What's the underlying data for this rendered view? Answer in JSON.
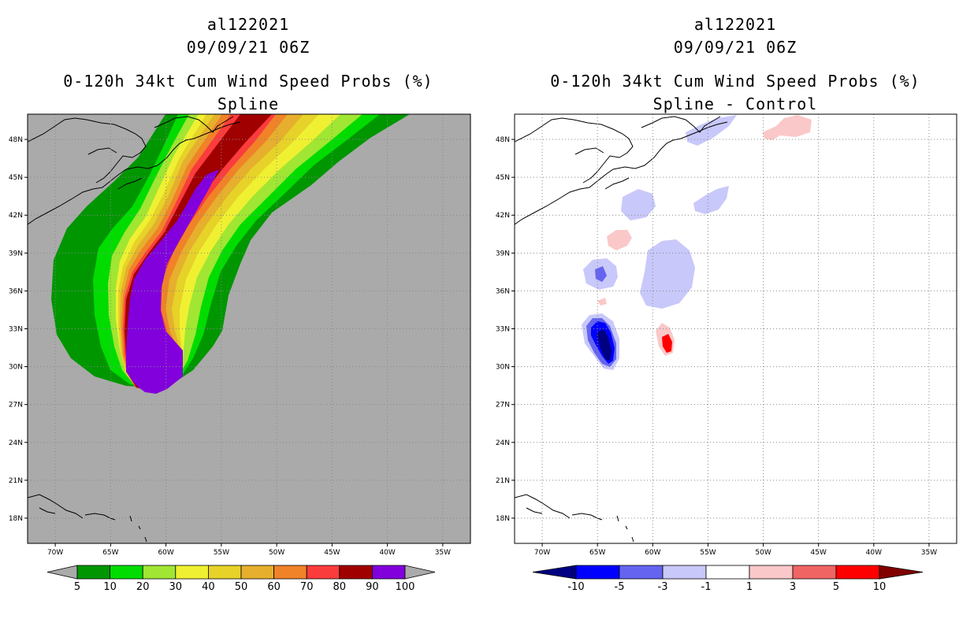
{
  "colors": {
    "land_left": "#aaaaaa",
    "ocean_right": "#ffffff",
    "grid": "#888888",
    "coast": "#000000"
  },
  "chart_data": [
    {
      "type": "heatmap",
      "panel": "left",
      "storm_id": "al122021",
      "datetime": "09/09/21 06Z",
      "title": "0-120h 34kt Cum Wind Speed Probs (%)",
      "subtitle": "Spline",
      "x_ticks": [
        "70W",
        "65W",
        "60W",
        "55W",
        "50W",
        "45W",
        "40W",
        "35W"
      ],
      "y_ticks": [
        "48N",
        "45N",
        "42N",
        "39N",
        "36N",
        "33N",
        "30N",
        "27N",
        "24N",
        "21N",
        "18N"
      ],
      "lon_range": [
        -72.5,
        -32.5
      ],
      "lat_range": [
        16,
        50
      ],
      "colorbar": {
        "labels": [
          "5",
          "10",
          "20",
          "30",
          "40",
          "50",
          "60",
          "70",
          "80",
          "90",
          "100"
        ],
        "colors": [
          "#aaaaaa",
          "#009600",
          "#00dc00",
          "#a0e632",
          "#f0f032",
          "#e6d228",
          "#e6af2d",
          "#f08228",
          "#fa3c3c",
          "#a00000",
          "#8200dc",
          "#aaaaaa"
        ]
      },
      "contours": [
        {
          "level": 5,
          "color": "#009600"
        },
        {
          "level": 10,
          "color": "#00dc00"
        },
        {
          "level": 20,
          "color": "#a0e632"
        },
        {
          "level": 30,
          "color": "#f0f032"
        },
        {
          "level": 40,
          "color": "#e6d228"
        },
        {
          "level": 50,
          "color": "#e6af2d"
        },
        {
          "level": 60,
          "color": "#f08228"
        },
        {
          "level": 70,
          "color": "#fa3c3c"
        },
        {
          "level": 80,
          "color": "#a00000"
        },
        {
          "level": 90,
          "color": "#8200dc"
        }
      ]
    },
    {
      "type": "heatmap",
      "panel": "right",
      "storm_id": "al122021",
      "datetime": "09/09/21 06Z",
      "title": "0-120h 34kt Cum Wind Speed Probs (%)",
      "subtitle": "Spline - Control",
      "x_ticks": [
        "70W",
        "65W",
        "60W",
        "55W",
        "50W",
        "45W",
        "40W",
        "35W"
      ],
      "y_ticks": [
        "48N",
        "45N",
        "42N",
        "39N",
        "36N",
        "33N",
        "30N",
        "27N",
        "24N",
        "21N",
        "18N"
      ],
      "lon_range": [
        -72.5,
        -32.5
      ],
      "lat_range": [
        16,
        50
      ],
      "colorbar": {
        "labels": [
          "-10",
          "-5",
          "-3",
          "-1",
          "1",
          "3",
          "5",
          "10"
        ],
        "colors": [
          "#000082",
          "#0000ff",
          "#6464f0",
          "#c8c8fa",
          "#ffffff",
          "#fac8c8",
          "#f06464",
          "#ff0000",
          "#820000"
        ]
      },
      "anomalies": [
        {
          "name": "blob-south-negative-a",
          "level": -1,
          "color": "#c8c8fa"
        },
        {
          "name": "blob-south-negative-b",
          "level": -3,
          "color": "#6464f0"
        },
        {
          "name": "blob-south-negative-c",
          "level": -5,
          "color": "#0000ff"
        },
        {
          "name": "blob-south-negative-d",
          "level": -10,
          "color": "#000082"
        },
        {
          "name": "blob-positive-small",
          "level": 3,
          "color": "#f06464"
        },
        {
          "name": "blob-positive-core",
          "level": 5,
          "color": "#ff0000"
        }
      ]
    }
  ]
}
